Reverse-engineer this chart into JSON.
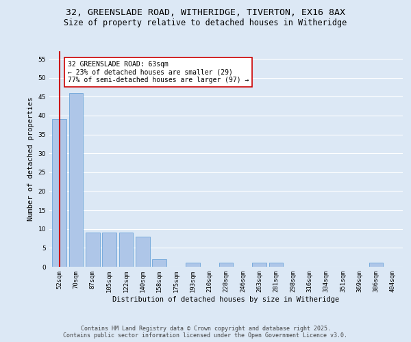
{
  "title_line1": "32, GREENSLADE ROAD, WITHERIDGE, TIVERTON, EX16 8AX",
  "title_line2": "Size of property relative to detached houses in Witheridge",
  "xlabel": "Distribution of detached houses by size in Witheridge",
  "ylabel": "Number of detached properties",
  "categories": [
    "52sqm",
    "70sqm",
    "87sqm",
    "105sqm",
    "122sqm",
    "140sqm",
    "158sqm",
    "175sqm",
    "193sqm",
    "210sqm",
    "228sqm",
    "246sqm",
    "263sqm",
    "281sqm",
    "298sqm",
    "316sqm",
    "334sqm",
    "351sqm",
    "369sqm",
    "386sqm",
    "404sqm"
  ],
  "values": [
    39,
    46,
    9,
    9,
    9,
    8,
    2,
    0,
    1,
    0,
    1,
    0,
    1,
    1,
    0,
    0,
    0,
    0,
    0,
    1,
    0
  ],
  "bar_color": "#aec6e8",
  "bar_edge_color": "#5b9bd5",
  "vline_x": 0,
  "vline_color": "#cc0000",
  "annotation_text": "32 GREENSLADE ROAD: 63sqm\n← 23% of detached houses are smaller (29)\n77% of semi-detached houses are larger (97) →",
  "annotation_box_color": "#ffffff",
  "annotation_box_edge": "#cc0000",
  "ylim": [
    0,
    57
  ],
  "yticks": [
    0,
    5,
    10,
    15,
    20,
    25,
    30,
    35,
    40,
    45,
    50,
    55
  ],
  "footer_line1": "Contains HM Land Registry data © Crown copyright and database right 2025.",
  "footer_line2": "Contains public sector information licensed under the Open Government Licence v3.0.",
  "background_color": "#dce8f5",
  "plot_background": "#dce8f5",
  "grid_color": "#ffffff",
  "title_fontsize": 9.5,
  "subtitle_fontsize": 8.5,
  "axis_label_fontsize": 7.5,
  "tick_fontsize": 6.5,
  "annotation_fontsize": 7,
  "footer_fontsize": 6
}
